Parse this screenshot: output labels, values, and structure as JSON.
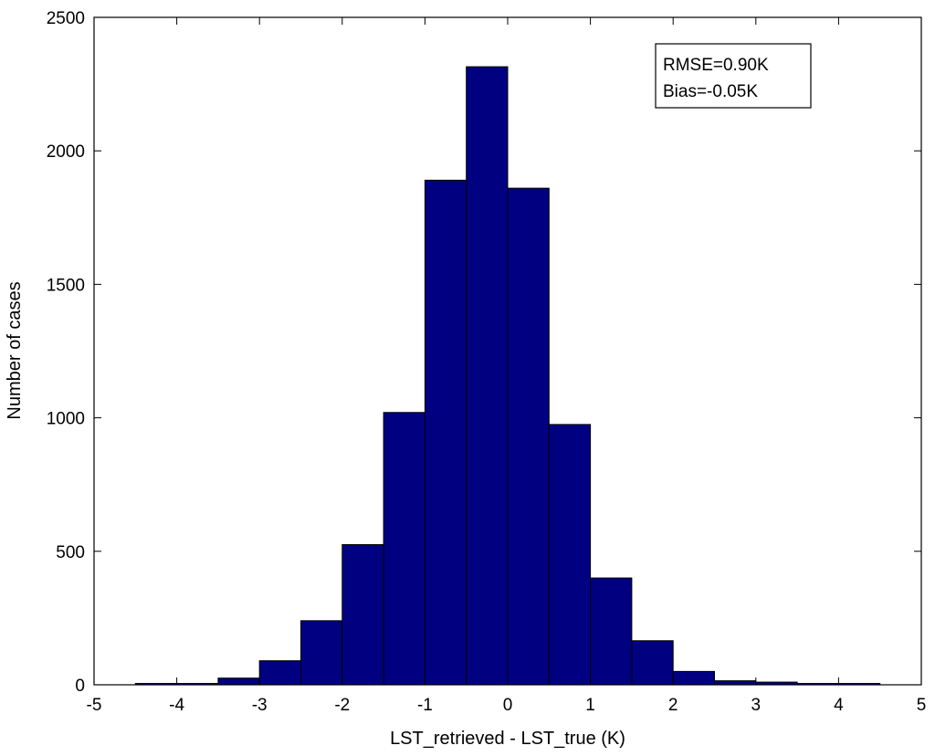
{
  "chart_data": {
    "type": "bar",
    "subtype": "histogram",
    "xlabel": "LST_retrieved - LST_true (K)",
    "ylabel": "Number of cases",
    "xlim": [
      -5,
      5
    ],
    "ylim": [
      0,
      2500
    ],
    "xticks": [
      -5,
      -4,
      -3,
      -2,
      -1,
      0,
      1,
      2,
      3,
      4,
      5
    ],
    "yticks": [
      0,
      500,
      1000,
      1500,
      2000,
      2500
    ],
    "bin_width": 0.5,
    "bin_centers": [
      -4.25,
      -3.75,
      -3.25,
      -2.75,
      -2.25,
      -1.75,
      -1.25,
      -0.75,
      -0.25,
      0.25,
      0.75,
      1.25,
      1.75,
      2.25,
      2.75,
      3.25,
      3.75,
      4.25
    ],
    "values": [
      5,
      5,
      25,
      90,
      240,
      525,
      1020,
      1890,
      2315,
      1860,
      975,
      400,
      165,
      50,
      15,
      10,
      5,
      5
    ],
    "bar_color": "#000080",
    "edge_color": "#000000",
    "annotation": {
      "lines": [
        "RMSE=0.90K",
        "Bias=-0.05K"
      ]
    },
    "grid": false
  }
}
